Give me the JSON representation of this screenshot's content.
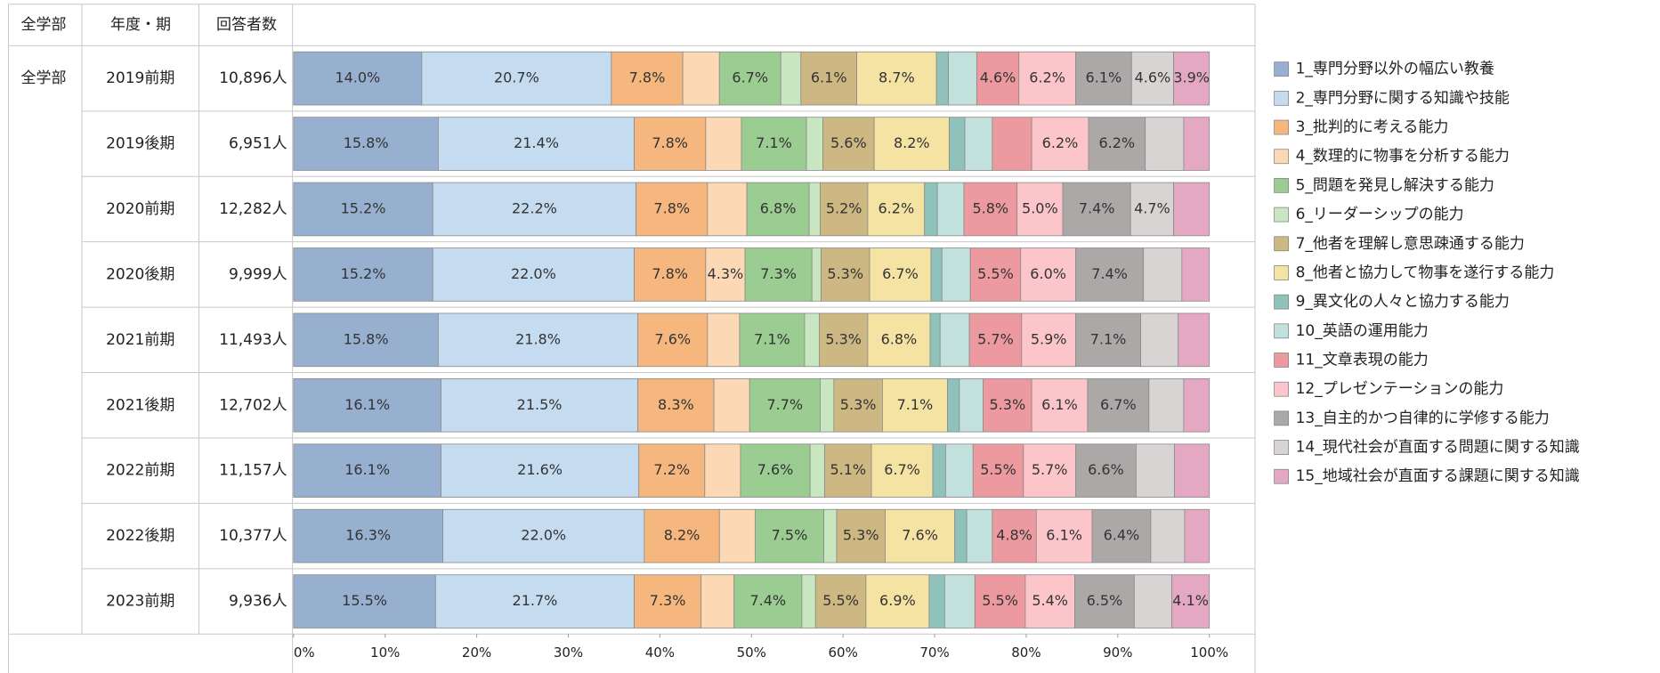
{
  "table": {
    "headers": [
      "全学部",
      "年度・期",
      "回答者数"
    ],
    "group": "全学部",
    "counts": [
      "10,896人",
      "6,951人",
      "12,282人",
      "9,999人",
      "11,493人",
      "12,702人",
      "11,157人",
      "10,377人",
      "9,936人"
    ]
  },
  "chart_data": {
    "type": "bar",
    "orientation": "horizontal",
    "stacked": true,
    "categories": [
      "2019前期",
      "2019後期",
      "2020前期",
      "2020後期",
      "2021前期",
      "2021後期",
      "2022前期",
      "2022後期",
      "2023前期"
    ],
    "xlim": [
      0,
      100
    ],
    "xticks": [
      {
        "value": 0,
        "label": "0%"
      },
      {
        "value": 10,
        "label": "10%"
      },
      {
        "value": 20,
        "label": "20%"
      },
      {
        "value": 30,
        "label": "30%"
      },
      {
        "value": 40,
        "label": "40%"
      },
      {
        "value": 50,
        "label": "50%"
      },
      {
        "value": 60,
        "label": "60%"
      },
      {
        "value": 70,
        "label": "70%"
      },
      {
        "value": 80,
        "label": "80%"
      },
      {
        "value": 90,
        "label": "90%"
      },
      {
        "value": 100,
        "label": "100%"
      }
    ],
    "legend": "right",
    "series": [
      {
        "name": "1_専門分野以外の幅広い教養",
        "color": "#98b0d0",
        "values": [
          14.0,
          15.8,
          15.2,
          15.2,
          15.8,
          16.1,
          16.1,
          16.3,
          15.5
        ],
        "value_labels": [
          "14.0%",
          "15.8%",
          "15.2%",
          "15.2%",
          "15.8%",
          "16.1%",
          "16.1%",
          "16.3%",
          "15.5%"
        ]
      },
      {
        "name": "2_専門分野に関する知識や技能",
        "color": "#c5dcf0",
        "values": [
          20.7,
          21.4,
          22.2,
          22.0,
          21.8,
          21.5,
          21.6,
          22.0,
          21.7
        ],
        "value_labels": [
          "20.7%",
          "21.4%",
          "22.2%",
          "22.0%",
          "21.8%",
          "21.5%",
          "21.6%",
          "22.0%",
          "21.7%"
        ]
      },
      {
        "name": "3_批判的に考える能力",
        "color": "#f5b77e",
        "values": [
          7.8,
          7.8,
          7.8,
          7.8,
          7.6,
          8.3,
          7.2,
          8.2,
          7.3
        ],
        "value_labels": [
          "7.8%",
          "7.8%",
          "7.8%",
          "7.8%",
          "7.6%",
          "8.3%",
          "7.2%",
          "8.2%",
          "7.3%"
        ]
      },
      {
        "name": "4_数理的に物事を分析する能力",
        "color": "#fdd8b4",
        "values": [
          4.0,
          3.9,
          4.3,
          4.3,
          3.5,
          3.9,
          3.9,
          3.9,
          3.6
        ],
        "value_labels": [
          null,
          null,
          null,
          "4.3%",
          null,
          null,
          null,
          null,
          null
        ]
      },
      {
        "name": "5_問題を発見し解決する能力",
        "color": "#9bcc91",
        "values": [
          6.7,
          7.1,
          6.8,
          7.3,
          7.1,
          7.7,
          7.6,
          7.5,
          7.4
        ],
        "value_labels": [
          "6.7%",
          "7.1%",
          "6.8%",
          "7.3%",
          "7.1%",
          "7.7%",
          "7.6%",
          "7.5%",
          "7.4%"
        ]
      },
      {
        "name": "6_リーダーシップの能力",
        "color": "#c8e6c0",
        "values": [
          2.2,
          1.8,
          1.2,
          1.0,
          1.6,
          1.5,
          1.6,
          1.4,
          1.5
        ],
        "value_labels": [
          null,
          null,
          null,
          null,
          null,
          null,
          null,
          null,
          null
        ]
      },
      {
        "name": "7_他者を理解し意思疎通する能力",
        "color": "#cdb883",
        "values": [
          6.1,
          5.6,
          5.2,
          5.3,
          5.3,
          5.3,
          5.1,
          5.3,
          5.5
        ],
        "value_labels": [
          "6.1%",
          "5.6%",
          "5.2%",
          "5.3%",
          "5.3%",
          "5.3%",
          "5.1%",
          "5.3%",
          "5.5%"
        ]
      },
      {
        "name": "8_他者と協力して物事を遂行する能力",
        "color": "#f5e3a3",
        "values": [
          8.7,
          8.2,
          6.2,
          6.7,
          6.8,
          7.1,
          6.7,
          7.6,
          6.9
        ],
        "value_labels": [
          "8.7%",
          "8.2%",
          "6.2%",
          "6.7%",
          "6.8%",
          "7.1%",
          "6.7%",
          "7.6%",
          "6.9%"
        ]
      },
      {
        "name": "9_異文化の人々と協力する能力",
        "color": "#8ec2bb",
        "values": [
          1.3,
          1.7,
          1.4,
          1.2,
          1.1,
          1.3,
          1.4,
          1.3,
          1.7
        ],
        "value_labels": [
          null,
          null,
          null,
          null,
          null,
          null,
          null,
          null,
          null
        ]
      },
      {
        "name": "10_英語の運用能力",
        "color": "#c2e0dc",
        "values": [
          3.1,
          3.0,
          2.9,
          3.1,
          3.2,
          2.6,
          3.0,
          2.8,
          3.3
        ],
        "value_labels": [
          null,
          null,
          null,
          null,
          null,
          null,
          null,
          null,
          null
        ]
      },
      {
        "name": "11_文章表現の能力",
        "color": "#ec9a9f",
        "values": [
          4.6,
          4.3,
          5.8,
          5.5,
          5.7,
          5.3,
          5.5,
          4.8,
          5.5
        ],
        "value_labels": [
          "4.6%",
          null,
          "5.8%",
          "5.5%",
          "5.7%",
          "5.3%",
          "5.5%",
          "4.8%",
          "5.5%"
        ]
      },
      {
        "name": "12_プレゼンテーションの能力",
        "color": "#fbc5c9",
        "values": [
          6.2,
          6.2,
          5.0,
          6.0,
          5.9,
          6.1,
          5.7,
          6.1,
          5.4
        ],
        "value_labels": [
          "6.2%",
          "6.2%",
          "5.0%",
          "6.0%",
          "5.9%",
          "6.1%",
          "5.7%",
          "6.1%",
          "5.4%"
        ]
      },
      {
        "name": "13_自主的かつ自律的に学修する能力",
        "color": "#aca8a8",
        "values": [
          6.1,
          6.2,
          7.4,
          7.4,
          7.1,
          6.7,
          6.6,
          6.4,
          6.5
        ],
        "value_labels": [
          "6.1%",
          "6.2%",
          "7.4%",
          "7.4%",
          "7.1%",
          "6.7%",
          "6.6%",
          "6.4%",
          "6.5%"
        ]
      },
      {
        "name": "14_現代社会が直面する問題に関する知識",
        "color": "#d8d4d3",
        "values": [
          4.6,
          4.2,
          4.7,
          4.2,
          4.1,
          3.8,
          4.2,
          3.7,
          4.1
        ],
        "value_labels": [
          "4.6%",
          null,
          "4.7%",
          null,
          null,
          null,
          null,
          null,
          null
        ]
      },
      {
        "name": "15_地域社会が直面する課題に関する知識",
        "color": "#e4a8c3",
        "values": [
          3.9,
          2.8,
          3.9,
          3.0,
          3.4,
          2.8,
          3.8,
          2.7,
          4.1
        ],
        "value_labels": [
          "3.9%",
          null,
          null,
          null,
          null,
          null,
          null,
          null,
          "4.1%"
        ]
      }
    ]
  }
}
